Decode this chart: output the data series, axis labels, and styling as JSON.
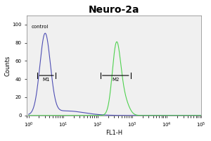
{
  "title": "Neuro-2a",
  "xlabel": "FL1-H",
  "ylabel": "Counts",
  "xlim_log": [
    0.9,
    100000
  ],
  "ylim": [
    0,
    110
  ],
  "yticks": [
    0,
    20,
    40,
    60,
    80,
    100
  ],
  "control_label": "control",
  "marker1_label": "M1",
  "marker2_label": "M2",
  "control_color": "#3333aa",
  "sample_color": "#33cc33",
  "bg_color": "#f0f0f0",
  "control_peak_x": 3.0,
  "control_peak_y": 88,
  "sample_peak_x": 350,
  "sample_peak_y": 78,
  "m1_x1": 1.8,
  "m1_x2": 6.0,
  "m1_y": 44,
  "m2_x1": 120,
  "m2_x2": 900,
  "m2_y": 44
}
